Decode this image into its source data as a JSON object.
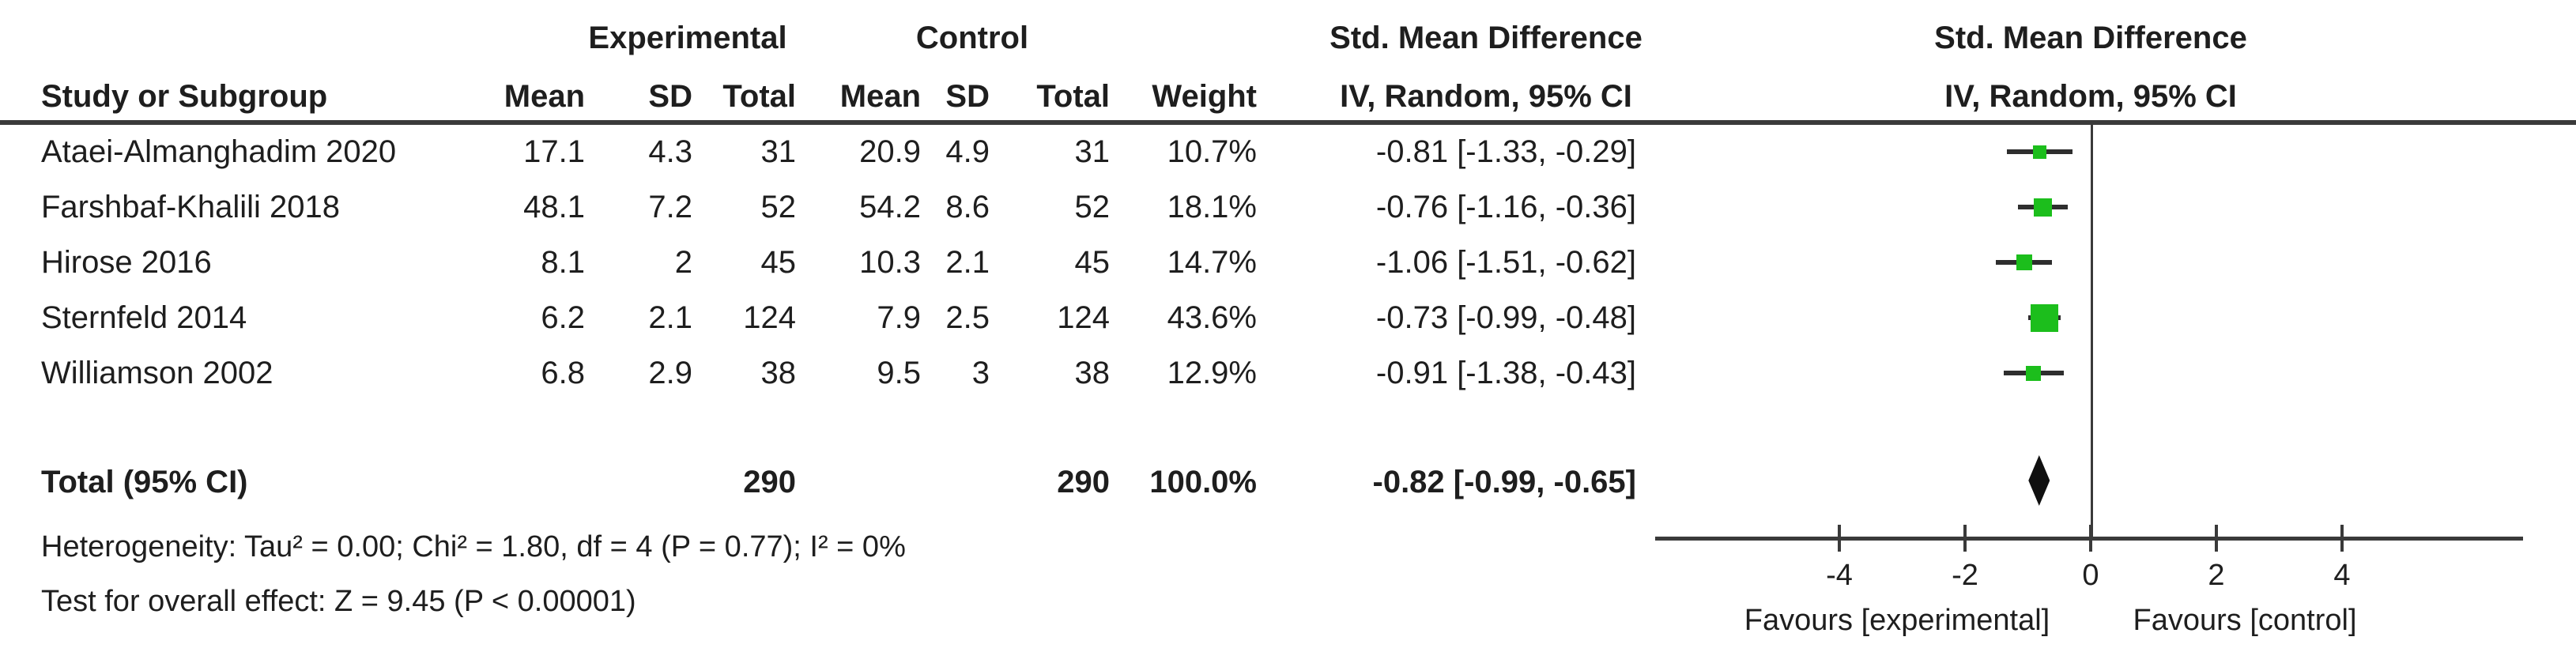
{
  "table": {
    "group_headers": {
      "experimental": "Experimental",
      "control": "Control",
      "smd_left": "Std. Mean Difference",
      "smd_right": "Std. Mean Difference"
    },
    "col_headers": {
      "study": "Study or Subgroup",
      "mean_exp": "Mean",
      "sd_exp": "SD",
      "total_exp": "Total",
      "mean_ctrl": "Mean",
      "sd_ctrl": "SD",
      "total_ctrl": "Total",
      "weight": "Weight",
      "iv_left": "IV, Random, 95% CI",
      "iv_right": "IV, Random, 95% CI"
    }
  },
  "plot": {
    "marker_color": "#1CBE1C",
    "diamond_color": "#101010",
    "line_color": "#3a3a3a"
  },
  "chart_data": {
    "type": "forest",
    "effect_measure": "Std. Mean Difference",
    "method_label": "IV, Random, 95% CI",
    "xticks": [
      -4,
      -2,
      0,
      2,
      4
    ],
    "xlim": [
      -6.9,
      6.9
    ],
    "favours": [
      "Favours [experimental]",
      "Favours [control]"
    ],
    "studies": [
      {
        "name": "Ataei-Almanghadim 2020",
        "exp_mean": "17.1",
        "exp_sd": "4.3",
        "exp_total": "31",
        "ctrl_mean": "20.9",
        "ctrl_sd": "4.9",
        "ctrl_total": "31",
        "weight": "10.7%",
        "weight_pct": 10.7,
        "smd_label": "-0.81 [-1.33, -0.29]",
        "est": -0.81,
        "ci_low": -1.33,
        "ci_high": -0.29
      },
      {
        "name": "Farshbaf-Khalili 2018",
        "exp_mean": "48.1",
        "exp_sd": "7.2",
        "exp_total": "52",
        "ctrl_mean": "54.2",
        "ctrl_sd": "8.6",
        "ctrl_total": "52",
        "weight": "18.1%",
        "weight_pct": 18.1,
        "smd_label": "-0.76 [-1.16, -0.36]",
        "est": -0.76,
        "ci_low": -1.16,
        "ci_high": -0.36
      },
      {
        "name": "Hirose 2016",
        "exp_mean": "8.1",
        "exp_sd": "2",
        "exp_total": "45",
        "ctrl_mean": "10.3",
        "ctrl_sd": "2.1",
        "ctrl_total": "45",
        "weight": "14.7%",
        "weight_pct": 14.7,
        "smd_label": "-1.06 [-1.51, -0.62]",
        "est": -1.06,
        "ci_low": -1.51,
        "ci_high": -0.62
      },
      {
        "name": "Sternfeld 2014",
        "exp_mean": "6.2",
        "exp_sd": "2.1",
        "exp_total": "124",
        "ctrl_mean": "7.9",
        "ctrl_sd": "2.5",
        "ctrl_total": "124",
        "weight": "43.6%",
        "weight_pct": 43.6,
        "smd_label": "-0.73 [-0.99, -0.48]",
        "est": -0.73,
        "ci_low": -0.99,
        "ci_high": -0.48
      },
      {
        "name": "Williamson 2002",
        "exp_mean": "6.8",
        "exp_sd": "2.9",
        "exp_total": "38",
        "ctrl_mean": "9.5",
        "ctrl_sd": "3",
        "ctrl_total": "38",
        "weight": "12.9%",
        "weight_pct": 12.9,
        "smd_label": "-0.91 [-1.38, -0.43]",
        "est": -0.91,
        "ci_low": -1.38,
        "ci_high": -0.43
      }
    ],
    "total": {
      "label": "Total (95% CI)",
      "exp_total": "290",
      "ctrl_total": "290",
      "weight": "100.0%",
      "smd_label": "-0.82 [-0.99, -0.65]",
      "est": -0.82,
      "ci_low": -0.99,
      "ci_high": -0.65
    },
    "heterogeneity": "Heterogeneity: Tau² = 0.00; Chi² = 1.80, df = 4 (P = 0.77); I² = 0%",
    "overall_effect": "Test for overall effect: Z = 9.45 (P < 0.00001)"
  }
}
